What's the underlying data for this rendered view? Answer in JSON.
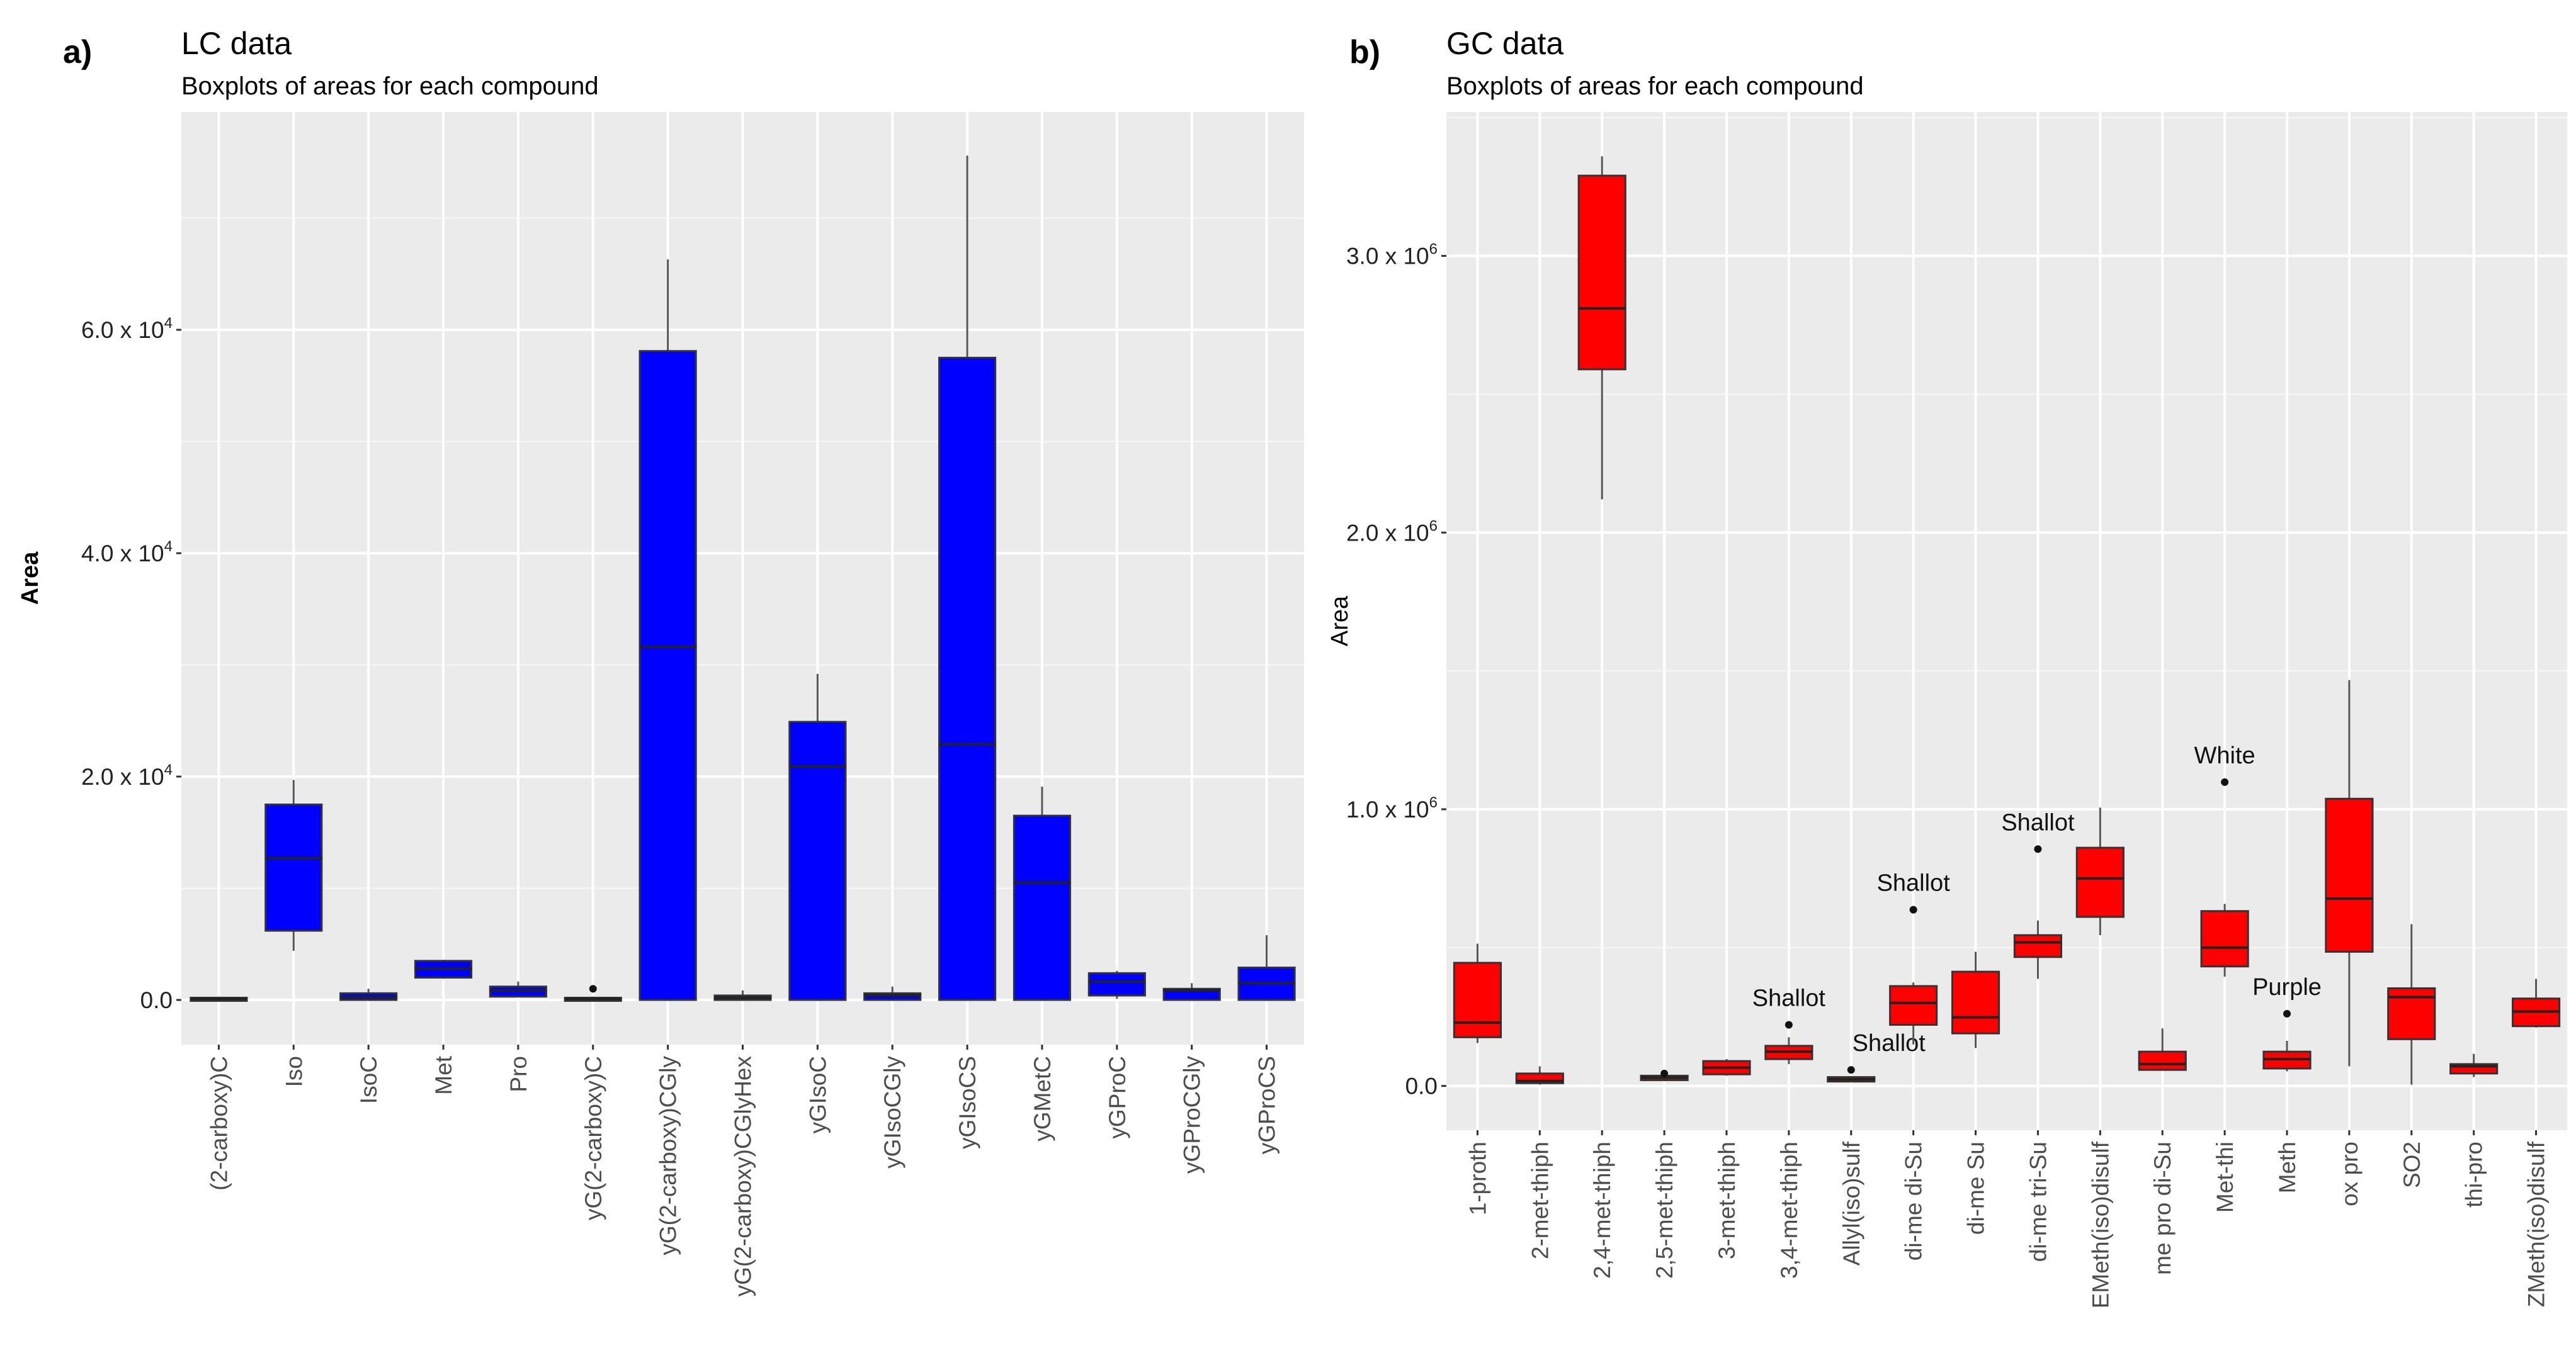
{
  "chart_data": [
    {
      "type": "boxplot",
      "panel_label": "a)",
      "title": "LC data",
      "subtitle": "Boxplots of areas for each compound",
      "xlabel": "",
      "ylabel": "Area",
      "ylim": [
        -4000,
        79500
      ],
      "grid": true,
      "fill": "#0000ff",
      "yticks": [
        {
          "value": 0,
          "label": "0.0",
          "exp": ""
        },
        {
          "value": 20000,
          "label": "2.0 x 10",
          "exp": "4"
        },
        {
          "value": 40000,
          "label": "4.0 x 10",
          "exp": "4"
        },
        {
          "value": 60000,
          "label": "6.0 x 10",
          "exp": "4"
        }
      ],
      "categories": [
        "(2-carboxy)C",
        "Iso",
        "IsoC",
        "Met",
        "Pro",
        "yG(2-carboxy)C",
        "yG(2-carboxy)CGly",
        "yG(2-carboxy)CGlyHex",
        "yGIsoC",
        "yGIsoCGly",
        "yGIsoCS",
        "yGMetC",
        "yGProC",
        "yGProCGly",
        "yGProCS"
      ],
      "boxes": [
        {
          "min": 0,
          "q1": 0,
          "median": 100,
          "q3": 200,
          "max": 300
        },
        {
          "min": 4400,
          "q1": 6200,
          "median": 12700,
          "q3": 17500,
          "max": 19700
        },
        {
          "min": 0,
          "q1": 0,
          "median": 250,
          "q3": 600,
          "max": 1000
        },
        {
          "min": 1900,
          "q1": 2000,
          "median": 2800,
          "q3": 3500,
          "max": 3600
        },
        {
          "min": 300,
          "q1": 300,
          "median": 850,
          "q3": 1200,
          "max": 1650
        },
        {
          "min": 0,
          "q1": 0,
          "median": 100,
          "q3": 200,
          "max": 300,
          "outliers": [
            1000
          ]
        },
        {
          "min": 0,
          "q1": 0,
          "median": 31600,
          "q3": 58100,
          "max": 66300
        },
        {
          "min": 0,
          "q1": 0,
          "median": 200,
          "q3": 400,
          "max": 850
        },
        {
          "min": 0,
          "q1": 0,
          "median": 20900,
          "q3": 24900,
          "max": 29200
        },
        {
          "min": 0,
          "q1": 0,
          "median": 400,
          "q3": 600,
          "max": 1200
        },
        {
          "min": 0,
          "q1": 0,
          "median": 22900,
          "q3": 57500,
          "max": 75600
        },
        {
          "min": 0,
          "q1": 0,
          "median": 10500,
          "q3": 16500,
          "max": 19100
        },
        {
          "min": 100,
          "q1": 400,
          "median": 1650,
          "q3": 2400,
          "max": 2600
        },
        {
          "min": 0,
          "q1": 0,
          "median": 850,
          "q3": 1000,
          "max": 1500
        },
        {
          "min": 0,
          "q1": 0,
          "median": 1500,
          "q3": 2900,
          "max": 5800
        }
      ]
    },
    {
      "type": "boxplot",
      "panel_label": "b)",
      "title": "GC data",
      "subtitle": "Boxplots of areas for each compound",
      "xlabel": "",
      "ylabel": "Area",
      "ylim": [
        -160000,
        3520000
      ],
      "grid": true,
      "fill": "#ff0000",
      "yticks": [
        {
          "value": 0,
          "label": "0.0",
          "exp": ""
        },
        {
          "value": 1000000,
          "label": "1.0 x 10",
          "exp": "6"
        },
        {
          "value": 2000000,
          "label": "2.0 x 10",
          "exp": "6"
        },
        {
          "value": 3000000,
          "label": "3.0 x 10",
          "exp": "6"
        }
      ],
      "categories": [
        "1-proth",
        "2-met-thiph",
        "2,4-met-thiph",
        "2,5-met-thiph",
        "3-met-thiph",
        "3,4-met-thiph",
        "Allyl(iso)sulf",
        "di-me di-Su",
        "di-me Su",
        "di-me tri-Su",
        "EMeth(iso)disulf",
        "me pro di-Su",
        "Met-thi",
        "Meth",
        "ox pro",
        "SO2",
        "thi-pro",
        "ZMeth(iso)disulf"
      ],
      "boxes": [
        {
          "min": 155000,
          "q1": 176000,
          "median": 229000,
          "q3": 445000,
          "max": 514000
        },
        {
          "min": 5000,
          "q1": 10000,
          "median": 18000,
          "q3": 45000,
          "max": 71000
        },
        {
          "min": 2120000,
          "q1": 2590000,
          "median": 2810000,
          "q3": 3290000,
          "max": 3360000
        },
        {
          "min": 21000,
          "q1": 21000,
          "median": 30000,
          "q3": 37000,
          "max": 37000,
          "outliers": [
            45000
          ]
        },
        {
          "min": 37000,
          "q1": 42000,
          "median": 66000,
          "q3": 90000,
          "max": 97000
        },
        {
          "min": 79000,
          "q1": 97000,
          "median": 124000,
          "q3": 145000,
          "max": 176000,
          "outliers": [
            221000
          ],
          "annotation": "Shallot"
        },
        {
          "min": 16000,
          "q1": 16000,
          "median": 24000,
          "q3": 32000,
          "max": 32000,
          "outliers": [
            58000
          ],
          "annotation": "Shallot"
        },
        {
          "min": 150000,
          "q1": 221000,
          "median": 300000,
          "q3": 361000,
          "max": 374000,
          "outliers": [
            637000
          ],
          "annotation": "Shallot"
        },
        {
          "min": 137000,
          "q1": 190000,
          "median": 248000,
          "q3": 413000,
          "max": 485000
        },
        {
          "min": 387000,
          "q1": 466000,
          "median": 519000,
          "q3": 545000,
          "max": 598000,
          "outliers": [
            856000
          ],
          "annotation": "Shallot"
        },
        {
          "min": 545000,
          "q1": 611000,
          "median": 750000,
          "q3": 861000,
          "max": 1006000
        },
        {
          "min": 58000,
          "q1": 58000,
          "median": 79000,
          "q3": 124000,
          "max": 208000
        },
        {
          "min": 395000,
          "q1": 432000,
          "median": 500000,
          "q3": 632000,
          "max": 658000,
          "outliers": [
            1098000
          ],
          "annotation": "White"
        },
        {
          "min": 53000,
          "q1": 63000,
          "median": 97000,
          "q3": 124000,
          "max": 163000,
          "outliers": [
            261000
          ],
          "annotation": "Purple"
        },
        {
          "min": 71000,
          "q1": 485000,
          "median": 677000,
          "q3": 1038000,
          "max": 1467000
        },
        {
          "min": 5000,
          "q1": 169000,
          "median": 321000,
          "q3": 353000,
          "max": 585000
        },
        {
          "min": 32000,
          "q1": 45000,
          "median": 71000,
          "q3": 79000,
          "max": 116000
        },
        {
          "min": 211000,
          "q1": 216000,
          "median": 269000,
          "q3": 316000,
          "max": 387000
        }
      ]
    }
  ]
}
